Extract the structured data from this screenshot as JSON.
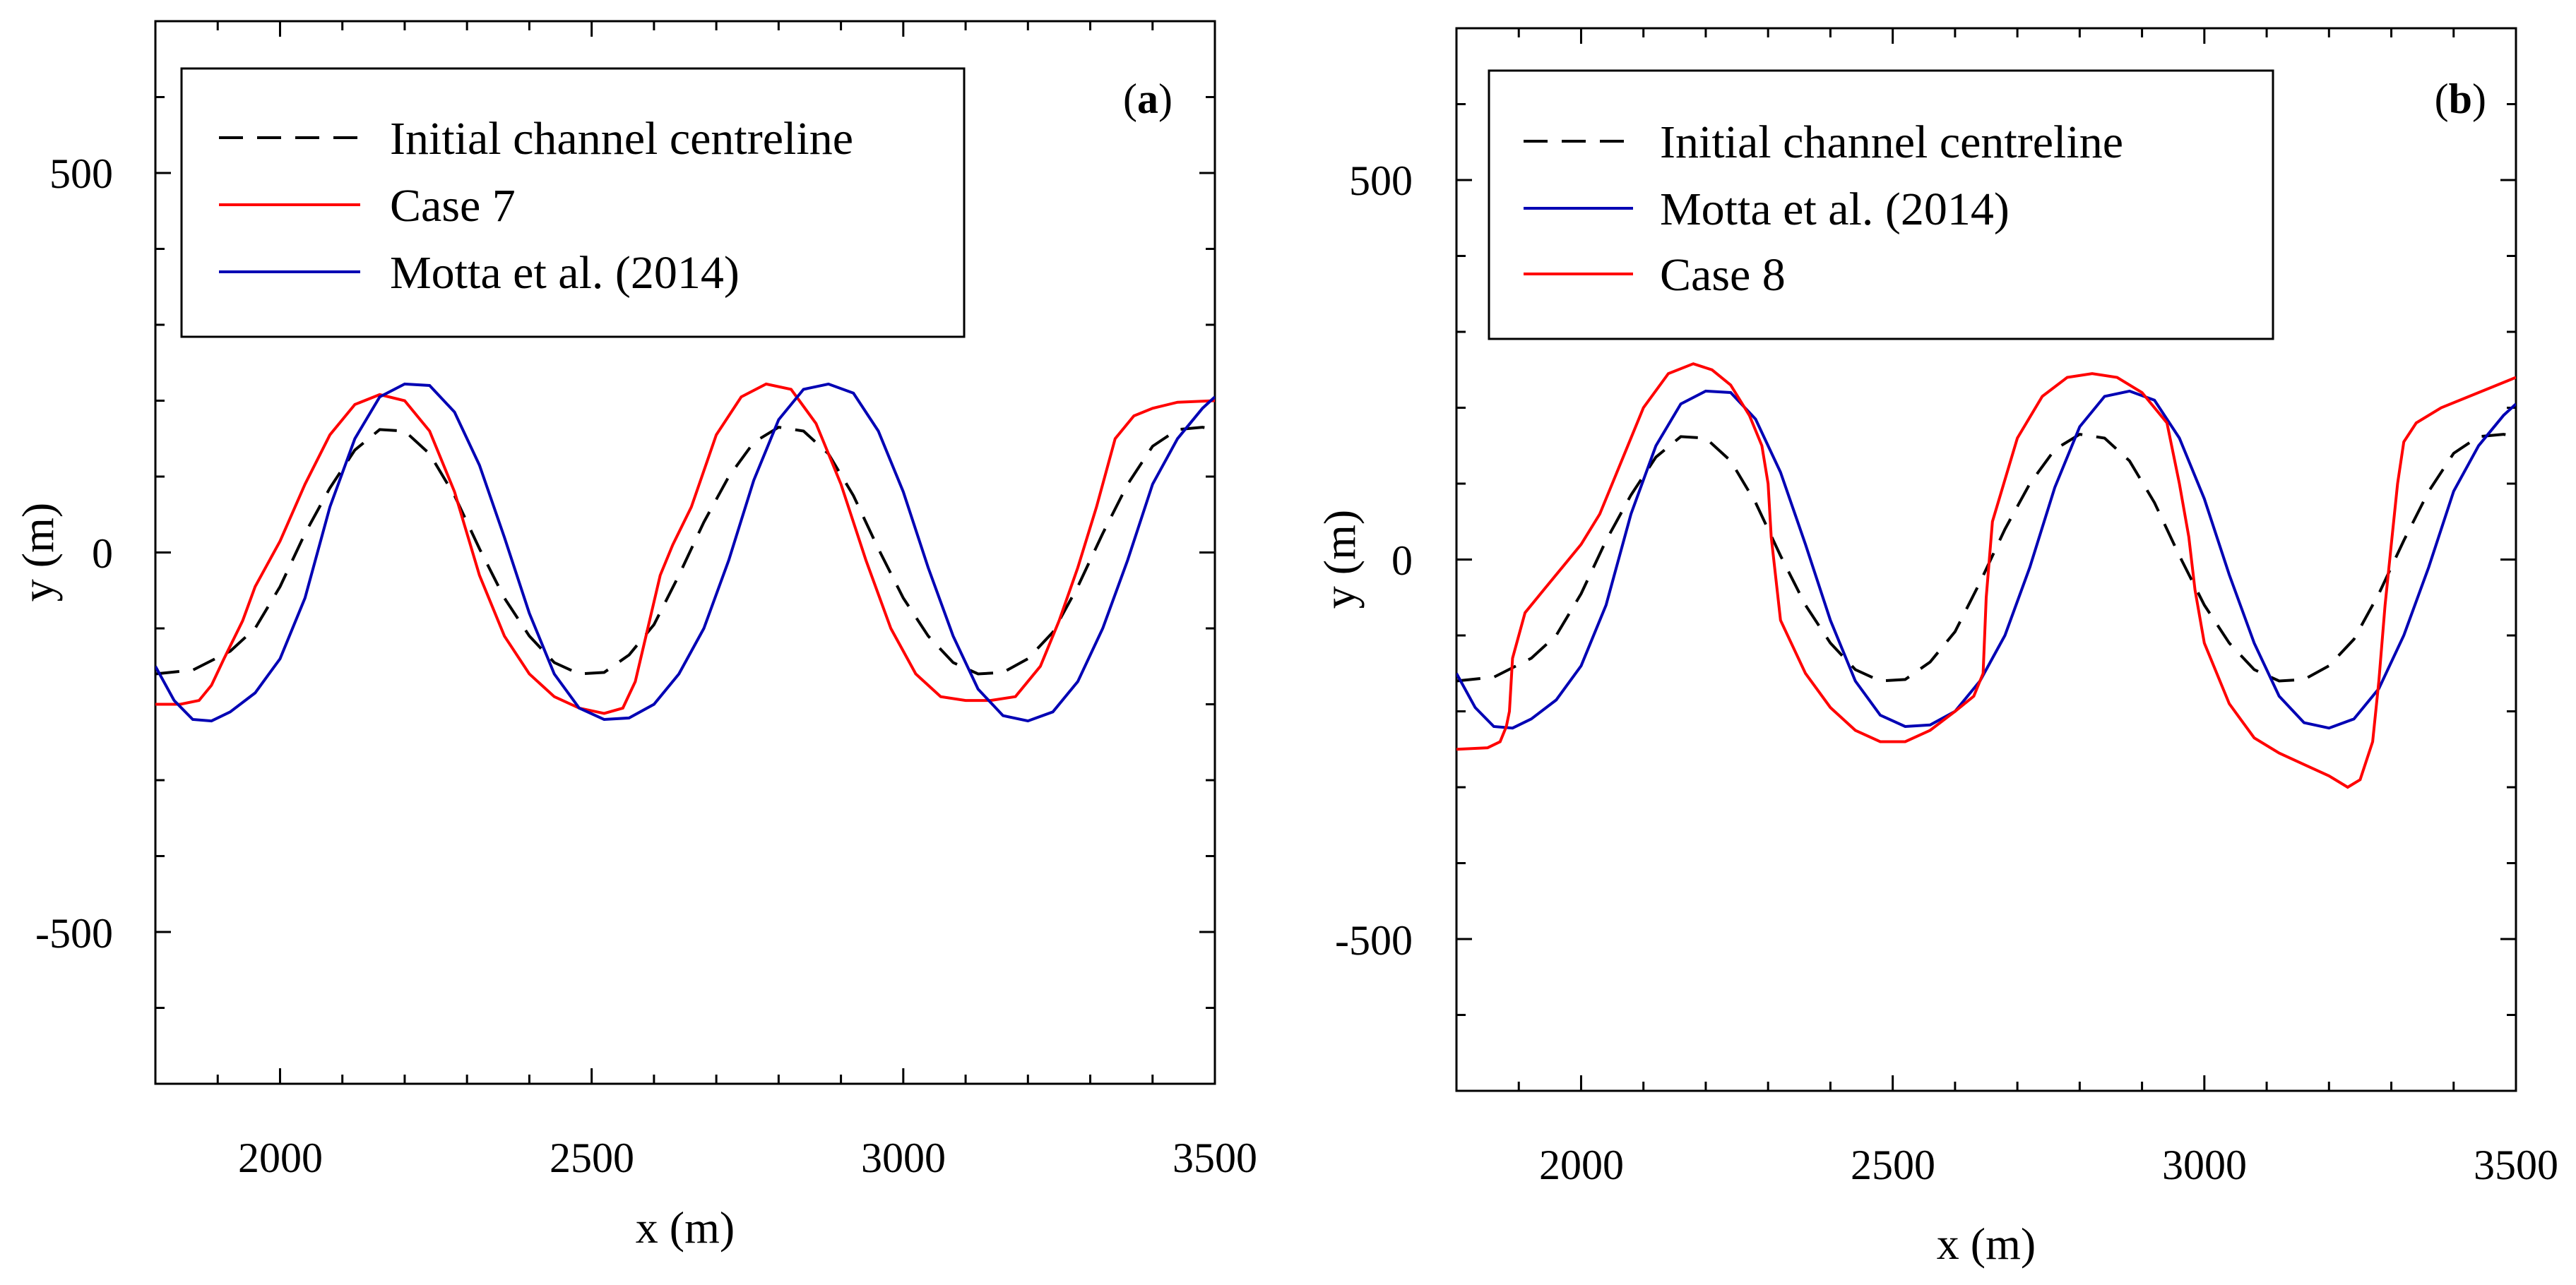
{
  "chart_data": [
    {
      "type": "line",
      "panel_label": "a",
      "xlabel": "x (m)",
      "ylabel": "y (m)",
      "xlim": [
        1800,
        3500
      ],
      "ylim": [
        -700,
        700
      ],
      "x_ticks": [
        "2000",
        "2500",
        "3000",
        "3500"
      ],
      "y_ticks": [
        "500",
        "0",
        "-500"
      ],
      "legend": [
        {
          "name": "Initial channel centreline",
          "color": "#000000",
          "dashed": true
        },
        {
          "name": "Case 7",
          "color": "#ff0000",
          "dashed": false
        },
        {
          "name": "Motta et al. (2014)",
          "color": "#0000b4",
          "dashed": false
        }
      ],
      "series": [
        {
          "name": "Initial channel centreline",
          "color": "#000000",
          "dashed": true,
          "x": [
            1800,
            1860,
            1920,
            1960,
            2000,
            2040,
            2080,
            2120,
            2160,
            2200,
            2240,
            2280,
            2320,
            2360,
            2400,
            2440,
            2480,
            2520,
            2560,
            2600,
            2640,
            2680,
            2720,
            2760,
            2800,
            2840,
            2880,
            2920,
            2960,
            3000,
            3040,
            3080,
            3120,
            3160,
            3200,
            3240,
            3280,
            3320,
            3360,
            3400,
            3440,
            3480,
            3500
          ],
          "y": [
            -160,
            -155,
            -130,
            -100,
            -45,
            25,
            85,
            135,
            162,
            160,
            130,
            75,
            5,
            -60,
            -110,
            -145,
            -160,
            -158,
            -135,
            -95,
            -30,
            40,
            100,
            145,
            165,
            160,
            130,
            75,
            5,
            -60,
            -110,
            -145,
            -160,
            -158,
            -140,
            -105,
            -45,
            25,
            90,
            140,
            162,
            165,
            162
          ]
        },
        {
          "name": "Case 7",
          "color": "#ff0000",
          "dashed": false,
          "x": [
            1800,
            1840,
            1870,
            1890,
            1910,
            1940,
            1960,
            2000,
            2040,
            2080,
            2120,
            2160,
            2200,
            2240,
            2280,
            2320,
            2360,
            2400,
            2440,
            2480,
            2520,
            2550,
            2570,
            2590,
            2610,
            2630,
            2660,
            2700,
            2740,
            2780,
            2820,
            2860,
            2900,
            2940,
            2980,
            3020,
            3060,
            3100,
            3140,
            3180,
            3220,
            3250,
            3280,
            3310,
            3340,
            3370,
            3400,
            3440,
            3500
          ],
          "y": [
            -200,
            -200,
            -195,
            -175,
            -140,
            -90,
            -45,
            15,
            90,
            155,
            195,
            208,
            200,
            160,
            80,
            -30,
            -110,
            -160,
            -190,
            -205,
            -212,
            -205,
            -170,
            -100,
            -30,
            10,
            60,
            155,
            205,
            222,
            215,
            170,
            90,
            -10,
            -100,
            -160,
            -190,
            -195,
            -195,
            -190,
            -150,
            -90,
            -20,
            60,
            150,
            180,
            190,
            198,
            200
          ]
        },
        {
          "name": "Motta et al. (2014)",
          "color": "#0000b4",
          "dashed": false,
          "x": [
            1800,
            1830,
            1860,
            1890,
            1920,
            1960,
            2000,
            2040,
            2080,
            2120,
            2160,
            2200,
            2240,
            2280,
            2320,
            2360,
            2400,
            2440,
            2480,
            2520,
            2560,
            2600,
            2640,
            2680,
            2720,
            2760,
            2800,
            2840,
            2880,
            2920,
            2960,
            3000,
            3040,
            3080,
            3120,
            3160,
            3200,
            3240,
            3280,
            3320,
            3360,
            3400,
            3440,
            3480,
            3500
          ],
          "y": [
            -150,
            -195,
            -220,
            -222,
            -210,
            -185,
            -140,
            -60,
            60,
            150,
            205,
            222,
            220,
            185,
            115,
            20,
            -80,
            -160,
            -205,
            -220,
            -218,
            -200,
            -160,
            -100,
            -10,
            95,
            175,
            215,
            222,
            210,
            160,
            80,
            -20,
            -110,
            -180,
            -215,
            -222,
            -210,
            -170,
            -100,
            -10,
            90,
            150,
            190,
            205
          ]
        }
      ]
    },
    {
      "type": "line",
      "panel_label": "b",
      "xlabel": "x (m)",
      "ylabel": "y (m)",
      "xlim": [
        1800,
        3500
      ],
      "ylim": [
        -700,
        700
      ],
      "x_ticks": [
        "2000",
        "2500",
        "3000",
        "3500"
      ],
      "y_ticks": [
        "500",
        "0",
        "-500"
      ],
      "legend": [
        {
          "name": "Initial channel centreline",
          "color": "#000000",
          "dashed": true
        },
        {
          "name": "Motta et al. (2014)",
          "color": "#0000b4",
          "dashed": false
        },
        {
          "name": "Case 8",
          "color": "#ff0000",
          "dashed": false
        }
      ],
      "series": [
        {
          "name": "Initial channel centreline",
          "color": "#000000",
          "dashed": true,
          "x": [
            1800,
            1860,
            1920,
            1960,
            2000,
            2040,
            2080,
            2120,
            2160,
            2200,
            2240,
            2280,
            2320,
            2360,
            2400,
            2440,
            2480,
            2520,
            2560,
            2600,
            2640,
            2680,
            2720,
            2760,
            2800,
            2840,
            2880,
            2920,
            2960,
            3000,
            3040,
            3080,
            3120,
            3160,
            3200,
            3240,
            3280,
            3320,
            3360,
            3400,
            3440,
            3480,
            3500
          ],
          "y": [
            -160,
            -155,
            -130,
            -100,
            -45,
            25,
            85,
            135,
            162,
            160,
            130,
            75,
            5,
            -60,
            -110,
            -145,
            -160,
            -158,
            -135,
            -95,
            -30,
            40,
            100,
            145,
            165,
            160,
            130,
            75,
            5,
            -60,
            -110,
            -145,
            -160,
            -158,
            -140,
            -105,
            -45,
            25,
            90,
            140,
            162,
            165,
            162
          ]
        },
        {
          "name": "Motta et al. (2014)",
          "color": "#0000b4",
          "dashed": false,
          "x": [
            1800,
            1830,
            1860,
            1890,
            1920,
            1960,
            2000,
            2040,
            2080,
            2120,
            2160,
            2200,
            2240,
            2280,
            2320,
            2360,
            2400,
            2440,
            2480,
            2520,
            2560,
            2600,
            2640,
            2680,
            2720,
            2760,
            2800,
            2840,
            2880,
            2920,
            2960,
            3000,
            3040,
            3080,
            3120,
            3160,
            3200,
            3240,
            3280,
            3320,
            3360,
            3400,
            3440,
            3480,
            3500
          ],
          "y": [
            -150,
            -195,
            -220,
            -222,
            -210,
            -185,
            -140,
            -60,
            60,
            150,
            205,
            222,
            220,
            185,
            115,
            20,
            -80,
            -160,
            -205,
            -220,
            -218,
            -200,
            -160,
            -100,
            -10,
            95,
            175,
            215,
            222,
            210,
            160,
            80,
            -20,
            -110,
            -180,
            -215,
            -222,
            -210,
            -170,
            -100,
            -10,
            90,
            150,
            190,
            205
          ]
        },
        {
          "name": "Case 8",
          "color": "#ff0000",
          "dashed": false,
          "x": [
            1800,
            1850,
            1870,
            1880,
            1885,
            1890,
            1910,
            1940,
            1970,
            2000,
            2030,
            2060,
            2100,
            2140,
            2180,
            2210,
            2240,
            2270,
            2290,
            2300,
            2305,
            2320,
            2360,
            2400,
            2440,
            2480,
            2520,
            2560,
            2600,
            2630,
            2645,
            2650,
            2660,
            2700,
            2740,
            2780,
            2820,
            2860,
            2900,
            2940,
            2960,
            2975,
            2985,
            3000,
            3040,
            3080,
            3120,
            3160,
            3200,
            3230,
            3250,
            3270,
            3280,
            3290,
            3300,
            3310,
            3320,
            3340,
            3380,
            3440,
            3500
          ],
          "y": [
            -250,
            -248,
            -240,
            -220,
            -200,
            -130,
            -70,
            -40,
            -10,
            20,
            60,
            120,
            200,
            245,
            258,
            250,
            230,
            190,
            150,
            100,
            30,
            -80,
            -150,
            -195,
            -225,
            -240,
            -240,
            -225,
            -200,
            -180,
            -150,
            -50,
            50,
            160,
            215,
            240,
            245,
            240,
            220,
            180,
            100,
            30,
            -40,
            -110,
            -190,
            -235,
            -255,
            -270,
            -285,
            -300,
            -290,
            -240,
            -160,
            -60,
            20,
            100,
            155,
            180,
            200,
            220,
            240
          ]
        }
      ]
    }
  ]
}
